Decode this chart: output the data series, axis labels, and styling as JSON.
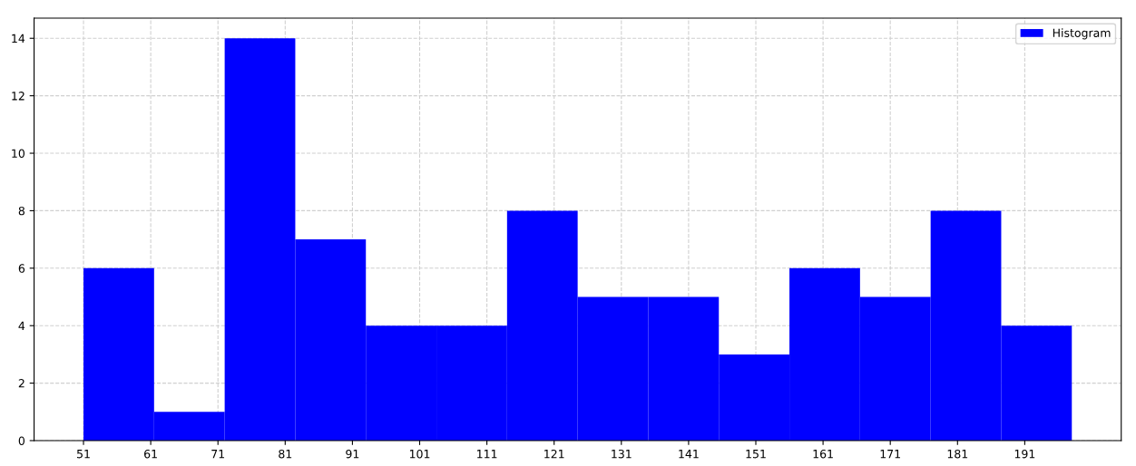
{
  "chart_data": {
    "type": "histogram",
    "bins": [
      51,
      61.5,
      72,
      82.5,
      93,
      103.5,
      114,
      124.5,
      135,
      145.5,
      156,
      166.5,
      177,
      187.5,
      198
    ],
    "series": [
      {
        "name": "Histogram",
        "color": "#0000ff",
        "values": [
          6,
          1,
          14,
          7,
          4,
          4,
          8,
          5,
          5,
          3,
          6,
          5,
          8,
          4
        ]
      }
    ],
    "xlim": [
      43.65,
      205.35
    ],
    "xticks": [
      51,
      61,
      71,
      81,
      91,
      101,
      111,
      121,
      131,
      141,
      151,
      161,
      171,
      181,
      191
    ],
    "ylim": [
      0,
      14.7
    ],
    "yticks": [
      0,
      2,
      4,
      6,
      8,
      10,
      12,
      14
    ],
    "grid": true,
    "line_style": "dashed",
    "legend": "top right"
  }
}
